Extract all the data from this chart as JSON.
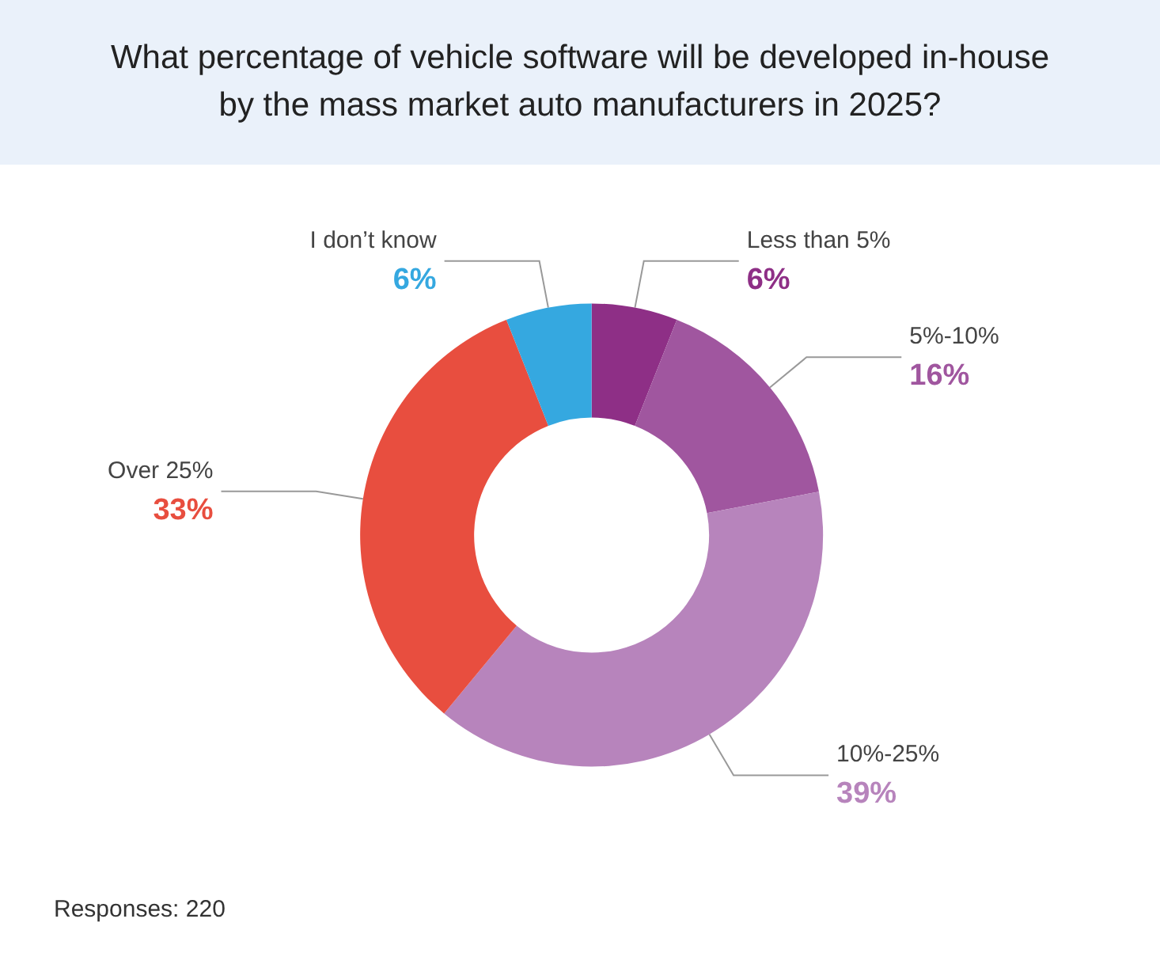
{
  "chart_data": {
    "type": "donut",
    "title": "What percentage of vehicle software will be developed in-house by the mass market auto manufacturers in 2025?",
    "categories": [
      "Less than 5%",
      "5%-10%",
      "10%-25%",
      "Over 25%",
      "I don’t know"
    ],
    "values": [
      6,
      16,
      39,
      33,
      6
    ],
    "value_labels": [
      "6%",
      "16%",
      "39%",
      "33%",
      "6%"
    ],
    "colors": [
      "#8e2f86",
      "#a0569f",
      "#b784bc",
      "#e84e3f",
      "#35a8e0"
    ],
    "annotations": [
      "Responses: 220"
    ],
    "legend": false
  }
}
